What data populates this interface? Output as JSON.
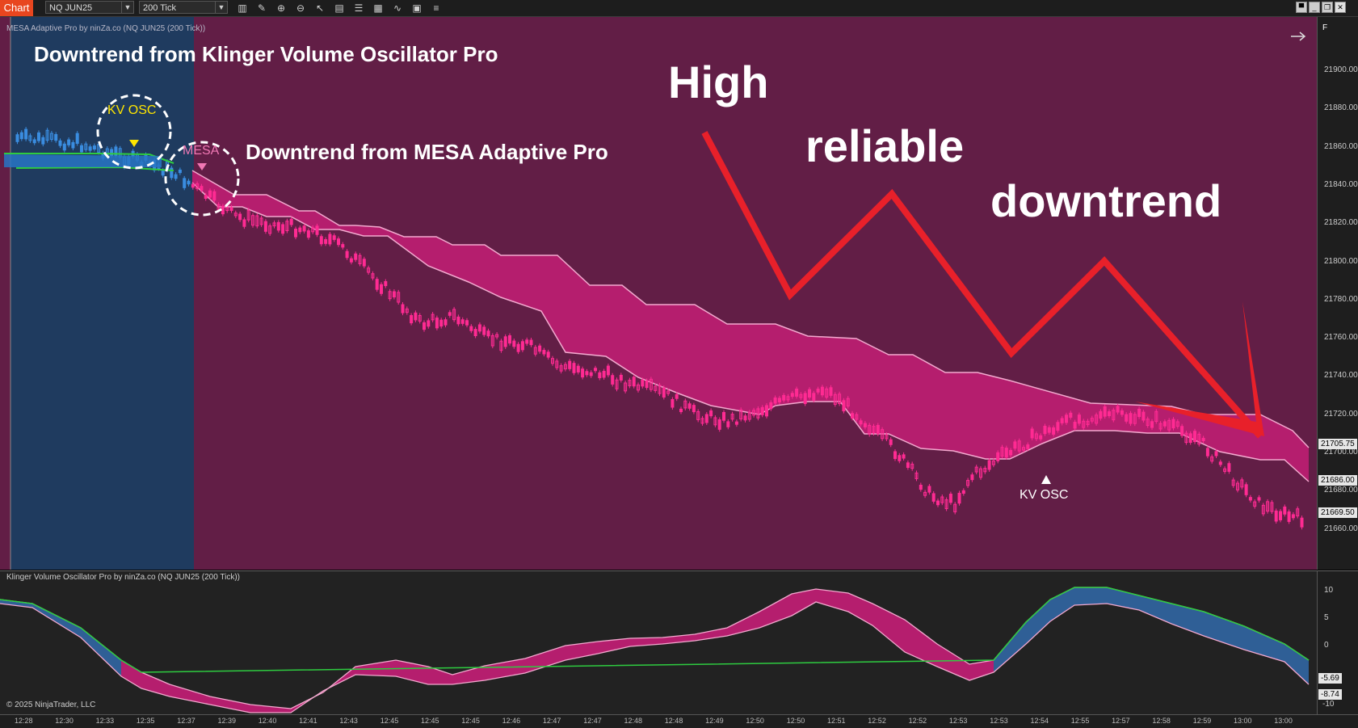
{
  "toolbar": {
    "tab_label": "Chart",
    "instrument": "NQ JUN25",
    "interval": "200 Tick",
    "icons": [
      "bar-type-icon",
      "draw-pen-icon",
      "zoom-in-icon",
      "zoom-out-icon",
      "pointer-icon",
      "data-box-icon",
      "properties-icon",
      "strategies-icon",
      "indicators-icon",
      "templates-icon"
    ],
    "window_buttons": [
      "minimize-icon",
      "restore-icon",
      "maximize-icon",
      "close-icon"
    ],
    "right_label": "F"
  },
  "main_panel": {
    "title": "MESA Adaptive Pro by ninZa.co (NQ JUN25 (200 Tick))",
    "colors": {
      "background": "#621e46",
      "kv_zone": "#1f3b5f",
      "cloud": "#b51e6e",
      "cloud_line": "#f3a9cf",
      "bull_candle": "#3a8de0",
      "bear_candle": "#ff2b93",
      "arrow": "#e8202a"
    }
  },
  "annotations": {
    "kv_heading": "Downtrend from Klinger Volume Oscillator Pro",
    "mesa_heading": "Downtrend from MESA Adaptive Pro",
    "kv_circle_label": "KV OSC",
    "mesa_circle_label": "MESA",
    "big_word_1": "High",
    "big_word_2": "reliable",
    "big_word_3": "downtrend",
    "kv_signal_label": "KV OSC"
  },
  "price_axis": {
    "ticks": [
      "21900.00",
      "21880.00",
      "21860.00",
      "21840.00",
      "21820.00",
      "21800.00",
      "21780.00",
      "21760.00",
      "21740.00",
      "21720.00",
      "21700.00",
      "21680.00",
      "21660.00"
    ],
    "badges": [
      "21705.75",
      "21686.00",
      "21669.50"
    ]
  },
  "lower_panel": {
    "title": "Klinger Volume Oscillator Pro by ninZa.co (NQ JUN25 (200 Tick))",
    "copyright": "© 2025 NinjaTrader, LLC",
    "ticks": [
      "10",
      "5",
      "0",
      "-10"
    ],
    "badges": [
      "-5.69",
      "-8.74"
    ]
  },
  "time_axis": {
    "ticks": [
      "12:28",
      "12:30",
      "12:33",
      "12:35",
      "12:37",
      "12:39",
      "12:40",
      "12:41",
      "12:43",
      "12:45",
      "12:45",
      "12:45",
      "12:46",
      "12:47",
      "12:47",
      "12:48",
      "12:48",
      "12:49",
      "12:50",
      "12:50",
      "12:51",
      "12:52",
      "12:52",
      "12:53",
      "12:53",
      "12:54",
      "12:55",
      "12:57",
      "12:58",
      "12:59",
      "13:00",
      "13:00"
    ]
  }
}
